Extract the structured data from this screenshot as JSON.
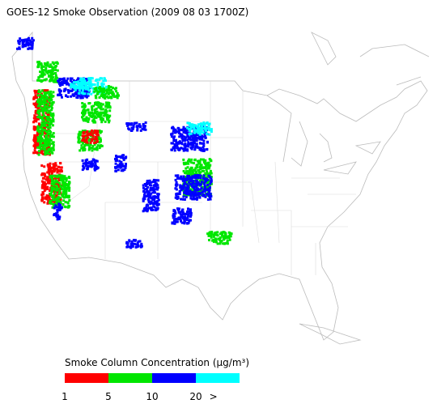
{
  "title": "GOES-12 Smoke Observation (2009 08 03  1700Z)",
  "legend": {
    "title": "Smoke Column Concentration (μg/m³)",
    "colors": [
      "#ff0000",
      "#00e600",
      "#0000ff",
      "#00ffff"
    ],
    "labels": [
      "1",
      "5",
      "10",
      "20",
      ">"
    ]
  }
}
